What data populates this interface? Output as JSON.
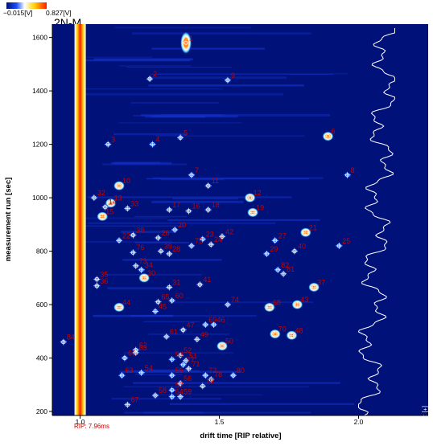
{
  "colorbar": {
    "min_label": "−0.015[V]",
    "max_label": "0.827[V]"
  },
  "sample_label": "2N-M",
  "rip_label": "RIP: 7.96ms",
  "side_label": "[+] 2N-M",
  "chart_data": {
    "type": "heatmap",
    "title": "",
    "xlabel": "drift time [RIP relative]",
    "ylabel": "measurement run [sec]",
    "xlim": [
      0.9,
      2.25
    ],
    "ylim": [
      185,
      1650
    ],
    "x_ticks": [
      1.0,
      1.5,
      2.0
    ],
    "x_tick_labels": [
      "1.0",
      "1.5",
      "2.0"
    ],
    "y_ticks": [
      200,
      400,
      600,
      800,
      1000,
      1200,
      1400,
      1600
    ],
    "y_tick_labels": [
      "200",
      "400",
      "600",
      "800",
      "1000",
      "1200",
      "1400",
      "1600"
    ],
    "colors": {
      "background": "#00127a",
      "low": "#1a3cff",
      "mid": "#ffffff",
      "high": "#ff2000",
      "rip": "#ff1a00",
      "label": "#c40000",
      "spectrum": "#ffffff"
    },
    "rip_x": 1.0,
    "peaks": [
      {
        "id": "1",
        "x": 1.38,
        "y": 1580
      },
      {
        "id": "2",
        "x": 1.25,
        "y": 1445
      },
      {
        "id": "3",
        "x": 1.1,
        "y": 1200
      },
      {
        "id": "4",
        "x": 1.26,
        "y": 1200
      },
      {
        "id": "5",
        "x": 1.36,
        "y": 1225
      },
      {
        "id": "6",
        "x": 1.89,
        "y": 1230
      },
      {
        "id": "7",
        "x": 1.4,
        "y": 1085
      },
      {
        "id": "8",
        "x": 1.96,
        "y": 1085
      },
      {
        "id": "9",
        "x": 1.53,
        "y": 1440
      },
      {
        "id": "10",
        "x": 1.14,
        "y": 1045
      },
      {
        "id": "11",
        "x": 1.46,
        "y": 1045
      },
      {
        "id": "12",
        "x": 1.61,
        "y": 1000
      },
      {
        "id": "13",
        "x": 1.11,
        "y": 980
      },
      {
        "id": "14",
        "x": 1.09,
        "y": 965
      },
      {
        "id": "15",
        "x": 1.08,
        "y": 930
      },
      {
        "id": "16",
        "x": 1.39,
        "y": 950
      },
      {
        "id": "17",
        "x": 1.32,
        "y": 955
      },
      {
        "id": "18",
        "x": 1.46,
        "y": 955
      },
      {
        "id": "19",
        "x": 1.62,
        "y": 945
      },
      {
        "id": "20",
        "x": 1.34,
        "y": 880
      },
      {
        "id": "21",
        "x": 1.81,
        "y": 870
      },
      {
        "id": "22",
        "x": 1.14,
        "y": 840
      },
      {
        "id": "23",
        "x": 1.44,
        "y": 845
      },
      {
        "id": "24",
        "x": 1.47,
        "y": 825
      },
      {
        "id": "25",
        "x": 1.93,
        "y": 820
      },
      {
        "id": "26",
        "x": 1.28,
        "y": 850
      },
      {
        "id": "27",
        "x": 1.7,
        "y": 840
      },
      {
        "id": "28",
        "x": 1.32,
        "y": 790
      },
      {
        "id": "29",
        "x": 1.67,
        "y": 790
      },
      {
        "id": "30",
        "x": 1.23,
        "y": 700
      },
      {
        "id": "31",
        "x": 1.32,
        "y": 665
      },
      {
        "id": "32",
        "x": 1.05,
        "y": 1000
      },
      {
        "id": "33",
        "x": 1.17,
        "y": 960
      },
      {
        "id": "34",
        "x": 1.22,
        "y": 730
      },
      {
        "id": "35",
        "x": 1.06,
        "y": 695
      },
      {
        "id": "36",
        "x": 1.06,
        "y": 670
      },
      {
        "id": "37",
        "x": 1.84,
        "y": 665
      },
      {
        "id": "38",
        "x": 1.19,
        "y": 860
      },
      {
        "id": "39",
        "x": 1.29,
        "y": 800
      },
      {
        "id": "40",
        "x": 1.77,
        "y": 800
      },
      {
        "id": "41",
        "x": 1.43,
        "y": 675
      },
      {
        "id": "42",
        "x": 1.51,
        "y": 855
      },
      {
        "id": "43",
        "x": 1.78,
        "y": 600
      },
      {
        "id": "44",
        "x": 1.14,
        "y": 590
      },
      {
        "id": "45",
        "x": 1.27,
        "y": 575
      },
      {
        "id": "46",
        "x": 1.48,
        "y": 525
      },
      {
        "id": "47",
        "x": 1.37,
        "y": 505
      },
      {
        "id": "48",
        "x": 1.76,
        "y": 485
      },
      {
        "id": "49",
        "x": 1.42,
        "y": 470
      },
      {
        "id": "50",
        "x": 1.51,
        "y": 445
      },
      {
        "id": "51",
        "x": 1.38,
        "y": 390
      },
      {
        "id": "52",
        "x": 1.36,
        "y": 410
      },
      {
        "id": "53",
        "x": 1.33,
        "y": 395
      },
      {
        "id": "54",
        "x": 1.22,
        "y": 345
      },
      {
        "id": "55",
        "x": 1.33,
        "y": 335
      },
      {
        "id": "56",
        "x": 1.36,
        "y": 305
      },
      {
        "id": "57",
        "x": 1.33,
        "y": 280
      },
      {
        "id": "58",
        "x": 1.27,
        "y": 260
      },
      {
        "id": "59",
        "x": 1.36,
        "y": 255
      },
      {
        "id": "60",
        "x": 1.33,
        "y": 615
      },
      {
        "id": "61",
        "x": 1.31,
        "y": 480
      },
      {
        "id": "62",
        "x": 1.2,
        "y": 430
      },
      {
        "id": "63",
        "x": 1.15,
        "y": 335
      },
      {
        "id": "64",
        "x": 1.33,
        "y": 255
      },
      {
        "id": "65",
        "x": 1.28,
        "y": 610
      },
      {
        "id": "66",
        "x": 1.16,
        "y": 400
      },
      {
        "id": "67",
        "x": 1.17,
        "y": 225
      },
      {
        "id": "68",
        "x": 1.68,
        "y": 590
      },
      {
        "id": "69",
        "x": 1.45,
        "y": 525
      },
      {
        "id": "70",
        "x": 1.7,
        "y": 490
      },
      {
        "id": "71",
        "x": 1.39,
        "y": 360
      },
      {
        "id": "72",
        "x": 1.45,
        "y": 335
      },
      {
        "id": "73",
        "x": 1.2,
        "y": 745
      },
      {
        "id": "74",
        "x": 1.53,
        "y": 600
      },
      {
        "id": "75",
        "x": 1.4,
        "y": 820
      },
      {
        "id": "76",
        "x": 1.19,
        "y": 795
      },
      {
        "id": "77",
        "x": 1.37,
        "y": 375
      },
      {
        "id": "78",
        "x": 1.47,
        "y": 320
      },
      {
        "id": "79",
        "x": 1.44,
        "y": 295
      },
      {
        "id": "80",
        "x": 1.55,
        "y": 335
      },
      {
        "id": "81",
        "x": 1.73,
        "y": 715
      },
      {
        "id": "82",
        "x": 1.71,
        "y": 730
      },
      {
        "id": "83",
        "x": 1.2,
        "y": 420
      },
      {
        "id": "84",
        "x": 0.94,
        "y": 460
      }
    ],
    "spectrum_x_range": [
      2.0,
      2.13
    ]
  }
}
